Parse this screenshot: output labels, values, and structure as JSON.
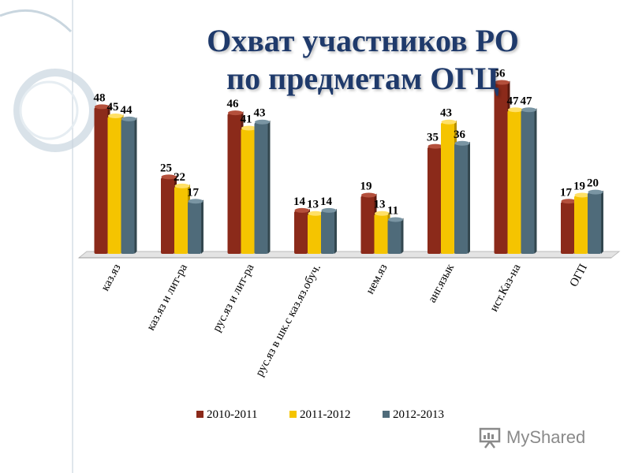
{
  "slide": {
    "title_line1": "Охват участников РО",
    "title_line2": "по предметам ОГЦ"
  },
  "watermark": {
    "text": "MyShared",
    "icon": "presentation-board-icon"
  },
  "colors": {
    "series": [
      "#8b2a1a",
      "#f5c400",
      "#4f6b7a"
    ],
    "series_side": [
      "#5c1a0f",
      "#b58f00",
      "#33474f"
    ],
    "series_top": [
      "#b4503c",
      "#ffe066",
      "#7a95a3"
    ],
    "floor": "#e4e4e4",
    "title": "#1f3a6b",
    "decoration": "#c9d6df"
  },
  "chart_data": {
    "type": "bar",
    "title": "Охват участников РО по предметам ОГЦ",
    "categories": [
      "каз.яз",
      "каз.яз и лит-ра",
      "рус.яз и лит-ра",
      "рус.яз в шк.с каз.яз.обуч.",
      "нем.яз",
      "анг.язык",
      "ист.Каз-на",
      "ОГП"
    ],
    "series": [
      {
        "name": "2010-2011",
        "values": [
          48,
          25,
          46,
          14,
          19,
          35,
          56,
          17
        ]
      },
      {
        "name": "2011-2012",
        "values": [
          45,
          22,
          41,
          13,
          13,
          43,
          47,
          19
        ]
      },
      {
        "name": "2012-2013",
        "values": [
          44,
          17,
          43,
          14,
          11,
          36,
          47,
          20
        ]
      }
    ],
    "ylim": [
      0,
      60
    ],
    "grid": false,
    "legend": "bottom",
    "data_labels": true
  }
}
